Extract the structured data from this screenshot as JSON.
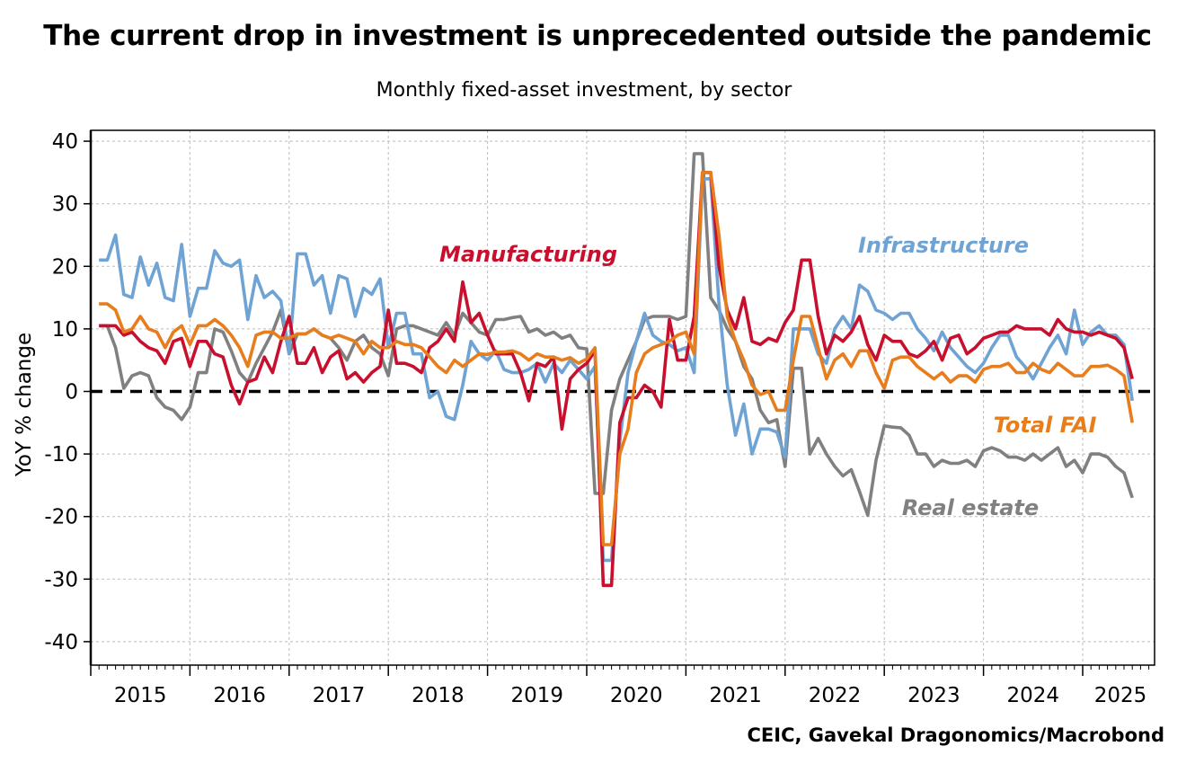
{
  "chart_data": {
    "type": "line",
    "title": "The current drop in investment is unprecedented outside the pandemic",
    "subtitle": "Monthly fixed-asset investment, by sector",
    "ylabel": "YoY % change",
    "xlabel": "",
    "ylim": [
      -45,
      42
    ],
    "yticks": [
      40,
      30,
      20,
      10,
      0,
      -10,
      -20,
      -30,
      -40
    ],
    "xticks": [
      "2015",
      "2016",
      "2017",
      "2018",
      "2019",
      "2020",
      "2021",
      "2022",
      "2023",
      "2024",
      "2025"
    ],
    "x_start": "2015-02",
    "x_step": "month",
    "grid": true,
    "zero_line": "dashed",
    "source": "CEIC, Gavekal Dragonomics/Macrobond",
    "series": [
      {
        "name": "Real estate",
        "color": "#808080",
        "values": [
          10.5,
          10.5,
          7,
          0.5,
          2.5,
          3,
          2.5,
          -1,
          -2.5,
          -3,
          -4.5,
          -2.5,
          3,
          3,
          10,
          9.5,
          6.5,
          3,
          1.5,
          4.5,
          7,
          9.5,
          13,
          6,
          9.2,
          9.2,
          10,
          9,
          8.5,
          7,
          5,
          8,
          9,
          7,
          6,
          2.5,
          10,
          10.5,
          10.5,
          10,
          9.5,
          9,
          11,
          9,
          12.5,
          11,
          9.5,
          9,
          11.5,
          11.5,
          11.8,
          12,
          9.5,
          10,
          9,
          9.5,
          8.5,
          9,
          7,
          6.8,
          -16.3,
          -16.3,
          -3,
          2,
          5,
          8,
          11.5,
          12,
          12,
          12,
          11.5,
          12,
          38,
          38,
          15,
          13,
          10,
          8,
          4,
          2,
          -3,
          -5,
          -4.5,
          -12,
          3.7,
          3.7,
          -10,
          -7.5,
          -10,
          -12,
          -13.5,
          -12.5,
          -16,
          -19.8,
          -11,
          -5.5,
          -5.7,
          -5.8,
          -7,
          -10,
          -10,
          -12,
          -11,
          -11.5,
          -11.5,
          -11,
          -12,
          -9.5,
          -9,
          -9.5,
          -10.5,
          -10.5,
          -11,
          -10,
          -11,
          -10,
          -9,
          -12,
          -11,
          -13,
          -10,
          -10,
          -10.5,
          -12,
          -13,
          -17
        ]
      },
      {
        "name": "Infrastructure",
        "color": "#6fa3d4",
        "values": [
          21,
          21,
          25,
          15.5,
          15,
          21.5,
          17,
          20.5,
          15,
          14.5,
          23.5,
          12,
          16.5,
          16.5,
          22.5,
          20.5,
          20,
          21,
          11.5,
          18.5,
          15,
          16,
          14.5,
          6,
          22,
          22,
          17,
          18.5,
          12.5,
          18.5,
          18,
          12,
          16.5,
          15.5,
          18,
          7,
          12.5,
          12.5,
          6,
          6,
          -1,
          0,
          -4,
          -4.5,
          1,
          8,
          6,
          5,
          6.5,
          3.5,
          3,
          3,
          3.5,
          4.5,
          1.5,
          4.5,
          3,
          5,
          3.5,
          2,
          4,
          -27,
          -27,
          -8,
          3,
          8,
          12.5,
          9,
          8,
          7.5,
          6.5,
          7,
          3,
          34,
          34,
          14,
          1,
          -7,
          -2,
          -10,
          -6,
          -6,
          -6.5,
          -10.5,
          10,
          10,
          10,
          6,
          4.5,
          10,
          12,
          10,
          17,
          16,
          13,
          12.5,
          11.5,
          12.5,
          12.5,
          10,
          8.5,
          6.5,
          9.5,
          7,
          5.5,
          4,
          3,
          4.5,
          7,
          9,
          9,
          5.5,
          4,
          2,
          4.5,
          7,
          9,
          6,
          13,
          7.5,
          9.5,
          10.5,
          9,
          9,
          7.5,
          -1.5
        ]
      },
      {
        "name": "Manufacturing",
        "color": "#c8102e",
        "values": [
          10.5,
          10.5,
          10.5,
          9,
          9.5,
          8,
          7,
          6.5,
          4.5,
          8,
          8.5,
          4,
          8,
          8,
          6,
          5.5,
          1,
          -2,
          1.5,
          2,
          5.5,
          3,
          8,
          12,
          4.5,
          4.5,
          7,
          3,
          5.5,
          6.5,
          2,
          3,
          1.5,
          3,
          4,
          13,
          4.5,
          4.5,
          4,
          3,
          7,
          8,
          10,
          8,
          17.5,
          11,
          12.5,
          9,
          6,
          6,
          6,
          3,
          -1.5,
          4.5,
          4,
          5.5,
          -6,
          2,
          3.5,
          4.5,
          6.5,
          -31,
          -31,
          -5,
          -1,
          -1,
          1,
          0,
          -2.5,
          11.5,
          5,
          5,
          12,
          35,
          35,
          20,
          13,
          10,
          15,
          8,
          7.5,
          8.5,
          8,
          11,
          13,
          21,
          21,
          12,
          6,
          9,
          8,
          9.5,
          12,
          7.5,
          5,
          9,
          8,
          8,
          6,
          5.5,
          6.5,
          8,
          5,
          8.5,
          9,
          6,
          7,
          8.5,
          9,
          9.5,
          9.5,
          10.5,
          10,
          10,
          10,
          9,
          11.5,
          10,
          9.5,
          9.5,
          9,
          9.5,
          9,
          8.5,
          7,
          2
        ]
      },
      {
        "name": "Total FAI",
        "color": "#e87d1e",
        "values": [
          14,
          14,
          13,
          9.5,
          10,
          12,
          10,
          9.5,
          7,
          9.5,
          10.5,
          7.5,
          10.5,
          10.5,
          11.5,
          10.5,
          9,
          7,
          4,
          9,
          9.5,
          9.5,
          8.5,
          8.5,
          9.2,
          9.2,
          10,
          9,
          8.5,
          9,
          8.5,
          8,
          6,
          8,
          7,
          7,
          8,
          7.5,
          7.5,
          7,
          5.5,
          4,
          3,
          5,
          4,
          5,
          6,
          5.9,
          6.3,
          6.3,
          6.5,
          6,
          5,
          6,
          5.5,
          5.5,
          5,
          5.4,
          4.5,
          5.2,
          7,
          -24.5,
          -24.5,
          -10,
          -6,
          3,
          6,
          7,
          7.5,
          8,
          9,
          9.5,
          6,
          35,
          35,
          25,
          12,
          8,
          5,
          1,
          -0.5,
          0,
          -3,
          -3,
          5,
          12,
          12,
          7,
          2,
          5,
          6,
          4,
          6.5,
          6.5,
          3,
          0.5,
          5,
          5.5,
          5.5,
          4,
          3,
          2,
          3,
          1.5,
          2.5,
          2.5,
          1.5,
          3.5,
          4,
          4,
          4.5,
          3,
          3,
          4.5,
          3.5,
          3,
          4.5,
          3.5,
          2.5,
          2.5,
          4,
          4,
          4.2,
          3.5,
          2.5,
          -5
        ]
      }
    ]
  }
}
